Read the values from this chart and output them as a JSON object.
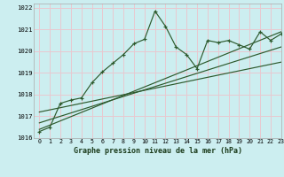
{
  "title": "Graphe pression niveau de la mer (hPa)",
  "bg_color": "#cceef0",
  "grid_color": "#e8c8d0",
  "line_color": "#2d5a2d",
  "xlim": [
    -0.5,
    23
  ],
  "ylim": [
    1016,
    1022.2
  ],
  "xticks": [
    0,
    1,
    2,
    3,
    4,
    5,
    6,
    7,
    8,
    9,
    10,
    11,
    12,
    13,
    14,
    15,
    16,
    17,
    18,
    19,
    20,
    21,
    22,
    23
  ],
  "yticks": [
    1016,
    1017,
    1018,
    1019,
    1020,
    1021,
    1022
  ],
  "main_data": [
    1016.3,
    1016.5,
    1017.6,
    1017.75,
    1017.85,
    1018.55,
    1019.05,
    1019.45,
    1019.85,
    1020.35,
    1020.55,
    1021.85,
    1021.15,
    1020.2,
    1019.85,
    1019.2,
    1020.5,
    1020.4,
    1020.5,
    1020.3,
    1020.1,
    1020.9,
    1020.5,
    1020.8
  ],
  "trend_lines": [
    [
      0,
      1016.4,
      23,
      1020.9
    ],
    [
      0,
      1016.7,
      23,
      1020.2
    ],
    [
      0,
      1017.2,
      23,
      1019.5
    ]
  ]
}
